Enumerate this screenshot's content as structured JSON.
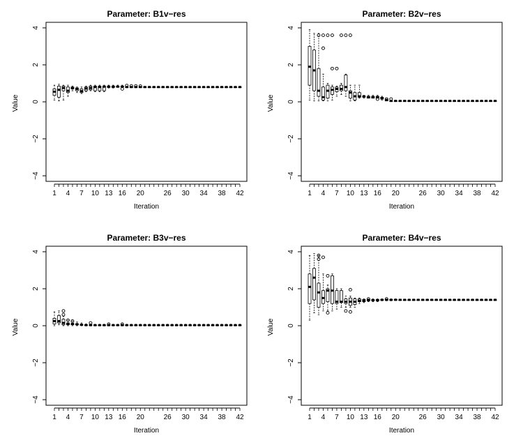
{
  "figure": {
    "x_tick_labels": [
      "1",
      "4",
      "7",
      "10",
      "13",
      "16",
      "20",
      "26",
      "30",
      "34",
      "38",
      "42"
    ],
    "y_tick_labels": [
      "4",
      "2",
      "0",
      "−2",
      "−4"
    ]
  },
  "chart_data": [
    {
      "type": "boxplot",
      "title": "Parameter: B1v−res",
      "xlabel": "Iteration",
      "ylabel": "Value",
      "ylim": [
        -4.3,
        4.3
      ],
      "x": [
        1,
        2,
        3,
        4,
        5,
        6,
        7,
        8,
        9,
        10,
        11,
        12,
        13,
        14,
        15,
        16,
        17,
        18,
        19,
        20,
        21,
        22,
        23,
        24,
        25,
        26,
        27,
        28,
        29,
        30,
        31,
        32,
        33,
        34,
        35,
        36,
        37,
        38,
        39,
        40,
        41,
        42
      ],
      "median": [
        0.55,
        0.65,
        0.75,
        0.6,
        0.75,
        0.7,
        0.58,
        0.72,
        0.75,
        0.8,
        0.8,
        0.82,
        0.82,
        0.82,
        0.82,
        0.82,
        0.8,
        0.8,
        0.8,
        0.8,
        0.8,
        0.8,
        0.8,
        0.8,
        0.8,
        0.8,
        0.8,
        0.8,
        0.8,
        0.8,
        0.8,
        0.8,
        0.8,
        0.8,
        0.8,
        0.8,
        0.8,
        0.8,
        0.8,
        0.8,
        0.8,
        0.8
      ],
      "q1": [
        0.35,
        0.25,
        0.6,
        0.5,
        0.7,
        0.6,
        0.5,
        0.6,
        0.65,
        0.6,
        0.6,
        0.6,
        0.78,
        0.78,
        0.8,
        0.8,
        0.8,
        0.8,
        0.8,
        0.8,
        0.8,
        0.8,
        0.8,
        0.8,
        0.8,
        0.8,
        0.8,
        0.8,
        0.8,
        0.8,
        0.8,
        0.8,
        0.8,
        0.8,
        0.8,
        0.8,
        0.8,
        0.8,
        0.8,
        0.8,
        0.8,
        0.8
      ],
      "q3": [
        0.7,
        0.85,
        0.85,
        0.8,
        0.8,
        0.75,
        0.7,
        0.8,
        0.85,
        0.85,
        0.85,
        0.85,
        0.85,
        0.85,
        0.85,
        0.85,
        0.8,
        0.8,
        0.8,
        0.8,
        0.8,
        0.8,
        0.8,
        0.8,
        0.8,
        0.8,
        0.8,
        0.8,
        0.8,
        0.8,
        0.8,
        0.8,
        0.8,
        0.8,
        0.8,
        0.8,
        0.8,
        0.8,
        0.8,
        0.8,
        0.8,
        0.8
      ],
      "whisker_low": [
        0.1,
        0.05,
        0.1,
        0.3,
        0.6,
        0.5,
        0.45,
        0.55,
        0.6,
        0.55,
        0.55,
        0.55,
        0.75,
        0.75,
        0.8,
        0.8,
        0.8,
        0.8,
        0.8,
        0.8,
        0.8,
        0.8,
        0.8,
        0.8,
        0.8,
        0.8,
        0.8,
        0.8,
        0.8,
        0.8,
        0.8,
        0.8,
        0.8,
        0.8,
        0.8,
        0.8,
        0.8,
        0.8,
        0.8,
        0.8,
        0.8,
        0.8
      ],
      "whisker_high": [
        0.9,
        0.95,
        0.9,
        0.9,
        0.85,
        0.8,
        0.8,
        0.85,
        0.9,
        0.9,
        0.9,
        0.9,
        0.9,
        0.9,
        0.9,
        0.9,
        0.8,
        0.8,
        0.8,
        0.8,
        0.8,
        0.8,
        0.8,
        0.8,
        0.8,
        0.8,
        0.8,
        0.8,
        0.8,
        0.8,
        0.8,
        0.8,
        0.8,
        0.8,
        0.8,
        0.8,
        0.8,
        0.8,
        0.8,
        0.8,
        0.8,
        0.8
      ],
      "outliers": [
        [
          16,
          0.7
        ],
        [
          17,
          0.88
        ],
        [
          18,
          0.86
        ],
        [
          19,
          0.86
        ],
        [
          20,
          0.85
        ]
      ]
    },
    {
      "type": "boxplot",
      "title": "Parameter: B2v−res",
      "xlabel": "Iteration",
      "ylabel": "Value",
      "ylim": [
        -4.3,
        4.3
      ],
      "x": [
        1,
        2,
        3,
        4,
        5,
        6,
        7,
        8,
        9,
        10,
        11,
        12,
        13,
        14,
        15,
        16,
        17,
        18,
        19,
        20,
        21,
        22,
        23,
        24,
        25,
        26,
        27,
        28,
        29,
        30,
        31,
        32,
        33,
        34,
        35,
        36,
        37,
        38,
        39,
        40,
        41,
        42
      ],
      "median": [
        1.9,
        1.7,
        0.6,
        0.25,
        0.6,
        0.65,
        0.7,
        0.7,
        0.8,
        0.5,
        0.3,
        0.3,
        0.3,
        0.25,
        0.25,
        0.25,
        0.2,
        0.1,
        0.05,
        0.05,
        0.05,
        0.05,
        0.05,
        0.05,
        0.05,
        0.05,
        0.05,
        0.05,
        0.05,
        0.05,
        0.05,
        0.05,
        0.05,
        0.05,
        0.05,
        0.05,
        0.05,
        0.05,
        0.05,
        0.05,
        0.05,
        0.05
      ],
      "q1": [
        0.9,
        0.6,
        0.3,
        0.1,
        0.2,
        0.4,
        0.55,
        0.6,
        0.6,
        0.2,
        0.1,
        0.25,
        0.25,
        0.2,
        0.2,
        0.2,
        0.15,
        0.05,
        0.05,
        0.05,
        0.05,
        0.05,
        0.05,
        0.05,
        0.05,
        0.05,
        0.05,
        0.05,
        0.05,
        0.05,
        0.05,
        0.05,
        0.05,
        0.05,
        0.05,
        0.05,
        0.05,
        0.05,
        0.05,
        0.05,
        0.05,
        0.05
      ],
      "q3": [
        3.0,
        2.8,
        1.8,
        0.8,
        0.9,
        0.8,
        0.8,
        0.9,
        1.45,
        0.6,
        0.5,
        0.5,
        0.3,
        0.3,
        0.3,
        0.3,
        0.25,
        0.1,
        0.05,
        0.05,
        0.05,
        0.05,
        0.05,
        0.05,
        0.05,
        0.05,
        0.05,
        0.05,
        0.05,
        0.05,
        0.05,
        0.05,
        0.05,
        0.05,
        0.05,
        0.05,
        0.05,
        0.05,
        0.05,
        0.05,
        0.05,
        0.05
      ],
      "whisker_low": [
        0.1,
        0.05,
        0.05,
        0.05,
        0.05,
        0.1,
        0.3,
        0.4,
        0.3,
        0.05,
        0.05,
        0.2,
        0.2,
        0.2,
        0.2,
        0.2,
        0.1,
        0.05,
        0.05,
        0.05,
        0.05,
        0.05,
        0.05,
        0.05,
        0.05,
        0.05,
        0.05,
        0.05,
        0.05,
        0.05,
        0.05,
        0.05,
        0.05,
        0.05,
        0.05,
        0.05,
        0.05,
        0.05,
        0.05,
        0.05,
        0.05,
        0.05
      ],
      "whisker_high": [
        3.9,
        3.7,
        3.7,
        1.5,
        1.0,
        0.9,
        0.85,
        1.0,
        1.5,
        0.9,
        0.9,
        0.9,
        0.35,
        0.35,
        0.35,
        0.35,
        0.3,
        0.15,
        0.05,
        0.05,
        0.05,
        0.05,
        0.05,
        0.05,
        0.05,
        0.05,
        0.05,
        0.05,
        0.05,
        0.05,
        0.05,
        0.05,
        0.05,
        0.05,
        0.05,
        0.05,
        0.05,
        0.05,
        0.05,
        0.05,
        0.05,
        0.05
      ],
      "outliers": [
        [
          3,
          3.6
        ],
        [
          4,
          2.9
        ],
        [
          4,
          3.6
        ],
        [
          5,
          3.6
        ],
        [
          6,
          3.6
        ],
        [
          6,
          1.8
        ],
        [
          7,
          1.8
        ],
        [
          8,
          3.6
        ],
        [
          9,
          3.6
        ],
        [
          10,
          3.6
        ],
        [
          16,
          0.15
        ],
        [
          18,
          0.15
        ],
        [
          19,
          0.15
        ]
      ]
    },
    {
      "type": "boxplot",
      "title": "Parameter: B3v−res",
      "xlabel": "Iteration",
      "ylabel": "Value",
      "ylim": [
        -4.3,
        4.3
      ],
      "x": [
        1,
        2,
        3,
        4,
        5,
        6,
        7,
        8,
        9,
        10,
        11,
        12,
        13,
        14,
        15,
        16,
        17,
        18,
        19,
        20,
        21,
        22,
        23,
        24,
        25,
        26,
        27,
        28,
        29,
        30,
        31,
        32,
        33,
        34,
        35,
        36,
        37,
        38,
        39,
        40,
        41,
        42
      ],
      "median": [
        0.25,
        0.25,
        0.15,
        0.1,
        0.1,
        0.08,
        0.05,
        0.03,
        0.03,
        0.03,
        0.03,
        0.03,
        0.03,
        0.03,
        0.03,
        0.03,
        0.03,
        0.03,
        0.03,
        0.03,
        0.03,
        0.03,
        0.03,
        0.03,
        0.03,
        0.03,
        0.03,
        0.03,
        0.03,
        0.03,
        0.03,
        0.03,
        0.03,
        0.03,
        0.03,
        0.03,
        0.03,
        0.03,
        0.03,
        0.03,
        0.03,
        0.03
      ],
      "q1": [
        0.1,
        0.15,
        0.05,
        0.05,
        0.05,
        0.05,
        0.03,
        0.02,
        0.02,
        0.02,
        0.02,
        0.02,
        0.02,
        0.02,
        0.02,
        0.02,
        0.02,
        0.02,
        0.02,
        0.02,
        0.02,
        0.02,
        0.02,
        0.02,
        0.02,
        0.02,
        0.02,
        0.02,
        0.02,
        0.02,
        0.02,
        0.02,
        0.02,
        0.02,
        0.02,
        0.02,
        0.02,
        0.02,
        0.02,
        0.02,
        0.02,
        0.02
      ],
      "q3": [
        0.4,
        0.55,
        0.35,
        0.15,
        0.12,
        0.1,
        0.07,
        0.05,
        0.05,
        0.04,
        0.04,
        0.04,
        0.04,
        0.04,
        0.04,
        0.04,
        0.04,
        0.04,
        0.04,
        0.04,
        0.04,
        0.04,
        0.04,
        0.04,
        0.04,
        0.04,
        0.04,
        0.04,
        0.04,
        0.04,
        0.04,
        0.04,
        0.04,
        0.04,
        0.04,
        0.04,
        0.04,
        0.04,
        0.04,
        0.04,
        0.04,
        0.04
      ],
      "whisker_low": [
        0.0,
        0.05,
        0.0,
        0.0,
        0.0,
        0.0,
        0.0,
        0.0,
        0.0,
        0.0,
        0.0,
        0.0,
        0.0,
        0.0,
        0.0,
        0.0,
        0.0,
        0.0,
        0.0,
        0.0,
        0.0,
        0.0,
        0.0,
        0.0,
        0.0,
        0.0,
        0.0,
        0.0,
        0.0,
        0.0,
        0.0,
        0.0,
        0.0,
        0.0,
        0.0,
        0.0,
        0.0,
        0.0,
        0.0,
        0.0,
        0.0,
        0.0
      ],
      "whisker_high": [
        0.75,
        0.8,
        0.5,
        0.3,
        0.25,
        0.2,
        0.15,
        0.1,
        0.1,
        0.08,
        0.08,
        0.08,
        0.08,
        0.08,
        0.08,
        0.08,
        0.08,
        0.08,
        0.08,
        0.08,
        0.08,
        0.08,
        0.08,
        0.08,
        0.08,
        0.08,
        0.08,
        0.08,
        0.08,
        0.08,
        0.08,
        0.08,
        0.08,
        0.08,
        0.08,
        0.08,
        0.08,
        0.08,
        0.08,
        0.08,
        0.08,
        0.08
      ],
      "outliers": [
        [
          3,
          0.8
        ],
        [
          3,
          0.6
        ],
        [
          4,
          0.3
        ],
        [
          5,
          0.25
        ],
        [
          9,
          0.15
        ],
        [
          13,
          0.08
        ],
        [
          16,
          0.08
        ]
      ]
    },
    {
      "type": "boxplot",
      "title": "Parameter: B4v−res",
      "xlabel": "Iteration",
      "ylabel": "Value",
      "ylim": [
        -4.3,
        4.3
      ],
      "x": [
        1,
        2,
        3,
        4,
        5,
        6,
        7,
        8,
        9,
        10,
        11,
        12,
        13,
        14,
        15,
        16,
        17,
        18,
        19,
        20,
        21,
        22,
        23,
        24,
        25,
        26,
        27,
        28,
        29,
        30,
        31,
        32,
        33,
        34,
        35,
        36,
        37,
        38,
        39,
        40,
        41,
        42
      ],
      "median": [
        2.1,
        2.6,
        1.8,
        1.5,
        1.9,
        1.9,
        1.3,
        1.3,
        1.3,
        1.3,
        1.3,
        1.35,
        1.35,
        1.38,
        1.38,
        1.38,
        1.4,
        1.4,
        1.4,
        1.4,
        1.4,
        1.4,
        1.4,
        1.4,
        1.4,
        1.4,
        1.4,
        1.4,
        1.4,
        1.4,
        1.4,
        1.4,
        1.4,
        1.4,
        1.4,
        1.4,
        1.4,
        1.4,
        1.4,
        1.4,
        1.4,
        1.4
      ],
      "q1": [
        1.2,
        1.4,
        1.0,
        1.2,
        1.3,
        1.2,
        1.2,
        1.25,
        1.2,
        1.1,
        1.15,
        1.3,
        1.3,
        1.35,
        1.35,
        1.35,
        1.38,
        1.38,
        1.38,
        1.4,
        1.4,
        1.4,
        1.4,
        1.4,
        1.4,
        1.4,
        1.4,
        1.4,
        1.4,
        1.4,
        1.4,
        1.4,
        1.4,
        1.4,
        1.4,
        1.4,
        1.4,
        1.4,
        1.4,
        1.4,
        1.4,
        1.4
      ],
      "q3": [
        2.8,
        3.1,
        2.3,
        1.9,
        2.0,
        2.7,
        1.9,
        1.9,
        1.45,
        1.5,
        1.45,
        1.45,
        1.42,
        1.42,
        1.42,
        1.42,
        1.42,
        1.42,
        1.42,
        1.42,
        1.4,
        1.4,
        1.4,
        1.4,
        1.4,
        1.4,
        1.4,
        1.4,
        1.4,
        1.4,
        1.4,
        1.4,
        1.4,
        1.4,
        1.4,
        1.4,
        1.4,
        1.4,
        1.4,
        1.4,
        1.4,
        1.4
      ],
      "whisker_low": [
        0.3,
        0.7,
        0.6,
        0.8,
        0.8,
        0.8,
        0.9,
        1.0,
        1.0,
        1.0,
        1.0,
        1.2,
        1.25,
        1.3,
        1.3,
        1.3,
        1.35,
        1.35,
        1.35,
        1.38,
        1.4,
        1.4,
        1.4,
        1.4,
        1.4,
        1.4,
        1.4,
        1.4,
        1.4,
        1.4,
        1.4,
        1.4,
        1.4,
        1.4,
        1.4,
        1.4,
        1.4,
        1.4,
        1.4,
        1.4,
        1.4,
        1.4
      ],
      "whisker_high": [
        3.8,
        3.9,
        3.8,
        2.8,
        2.2,
        2.8,
        2.0,
        2.0,
        1.6,
        1.6,
        1.5,
        1.5,
        1.45,
        1.45,
        1.45,
        1.45,
        1.45,
        1.45,
        1.45,
        1.45,
        1.4,
        1.4,
        1.4,
        1.4,
        1.4,
        1.4,
        1.4,
        1.4,
        1.4,
        1.4,
        1.4,
        1.4,
        1.4,
        1.4,
        1.4,
        1.4,
        1.4,
        1.4,
        1.4,
        1.4,
        1.4,
        1.4
      ],
      "outliers": [
        [
          3,
          3.8
        ],
        [
          3,
          3.6
        ],
        [
          4,
          3.7
        ],
        [
          5,
          2.7
        ],
        [
          5,
          0.7
        ],
        [
          9,
          0.8
        ],
        [
          10,
          0.75
        ],
        [
          10,
          1.95
        ],
        [
          14,
          1.45
        ],
        [
          18,
          1.45
        ]
      ]
    }
  ]
}
